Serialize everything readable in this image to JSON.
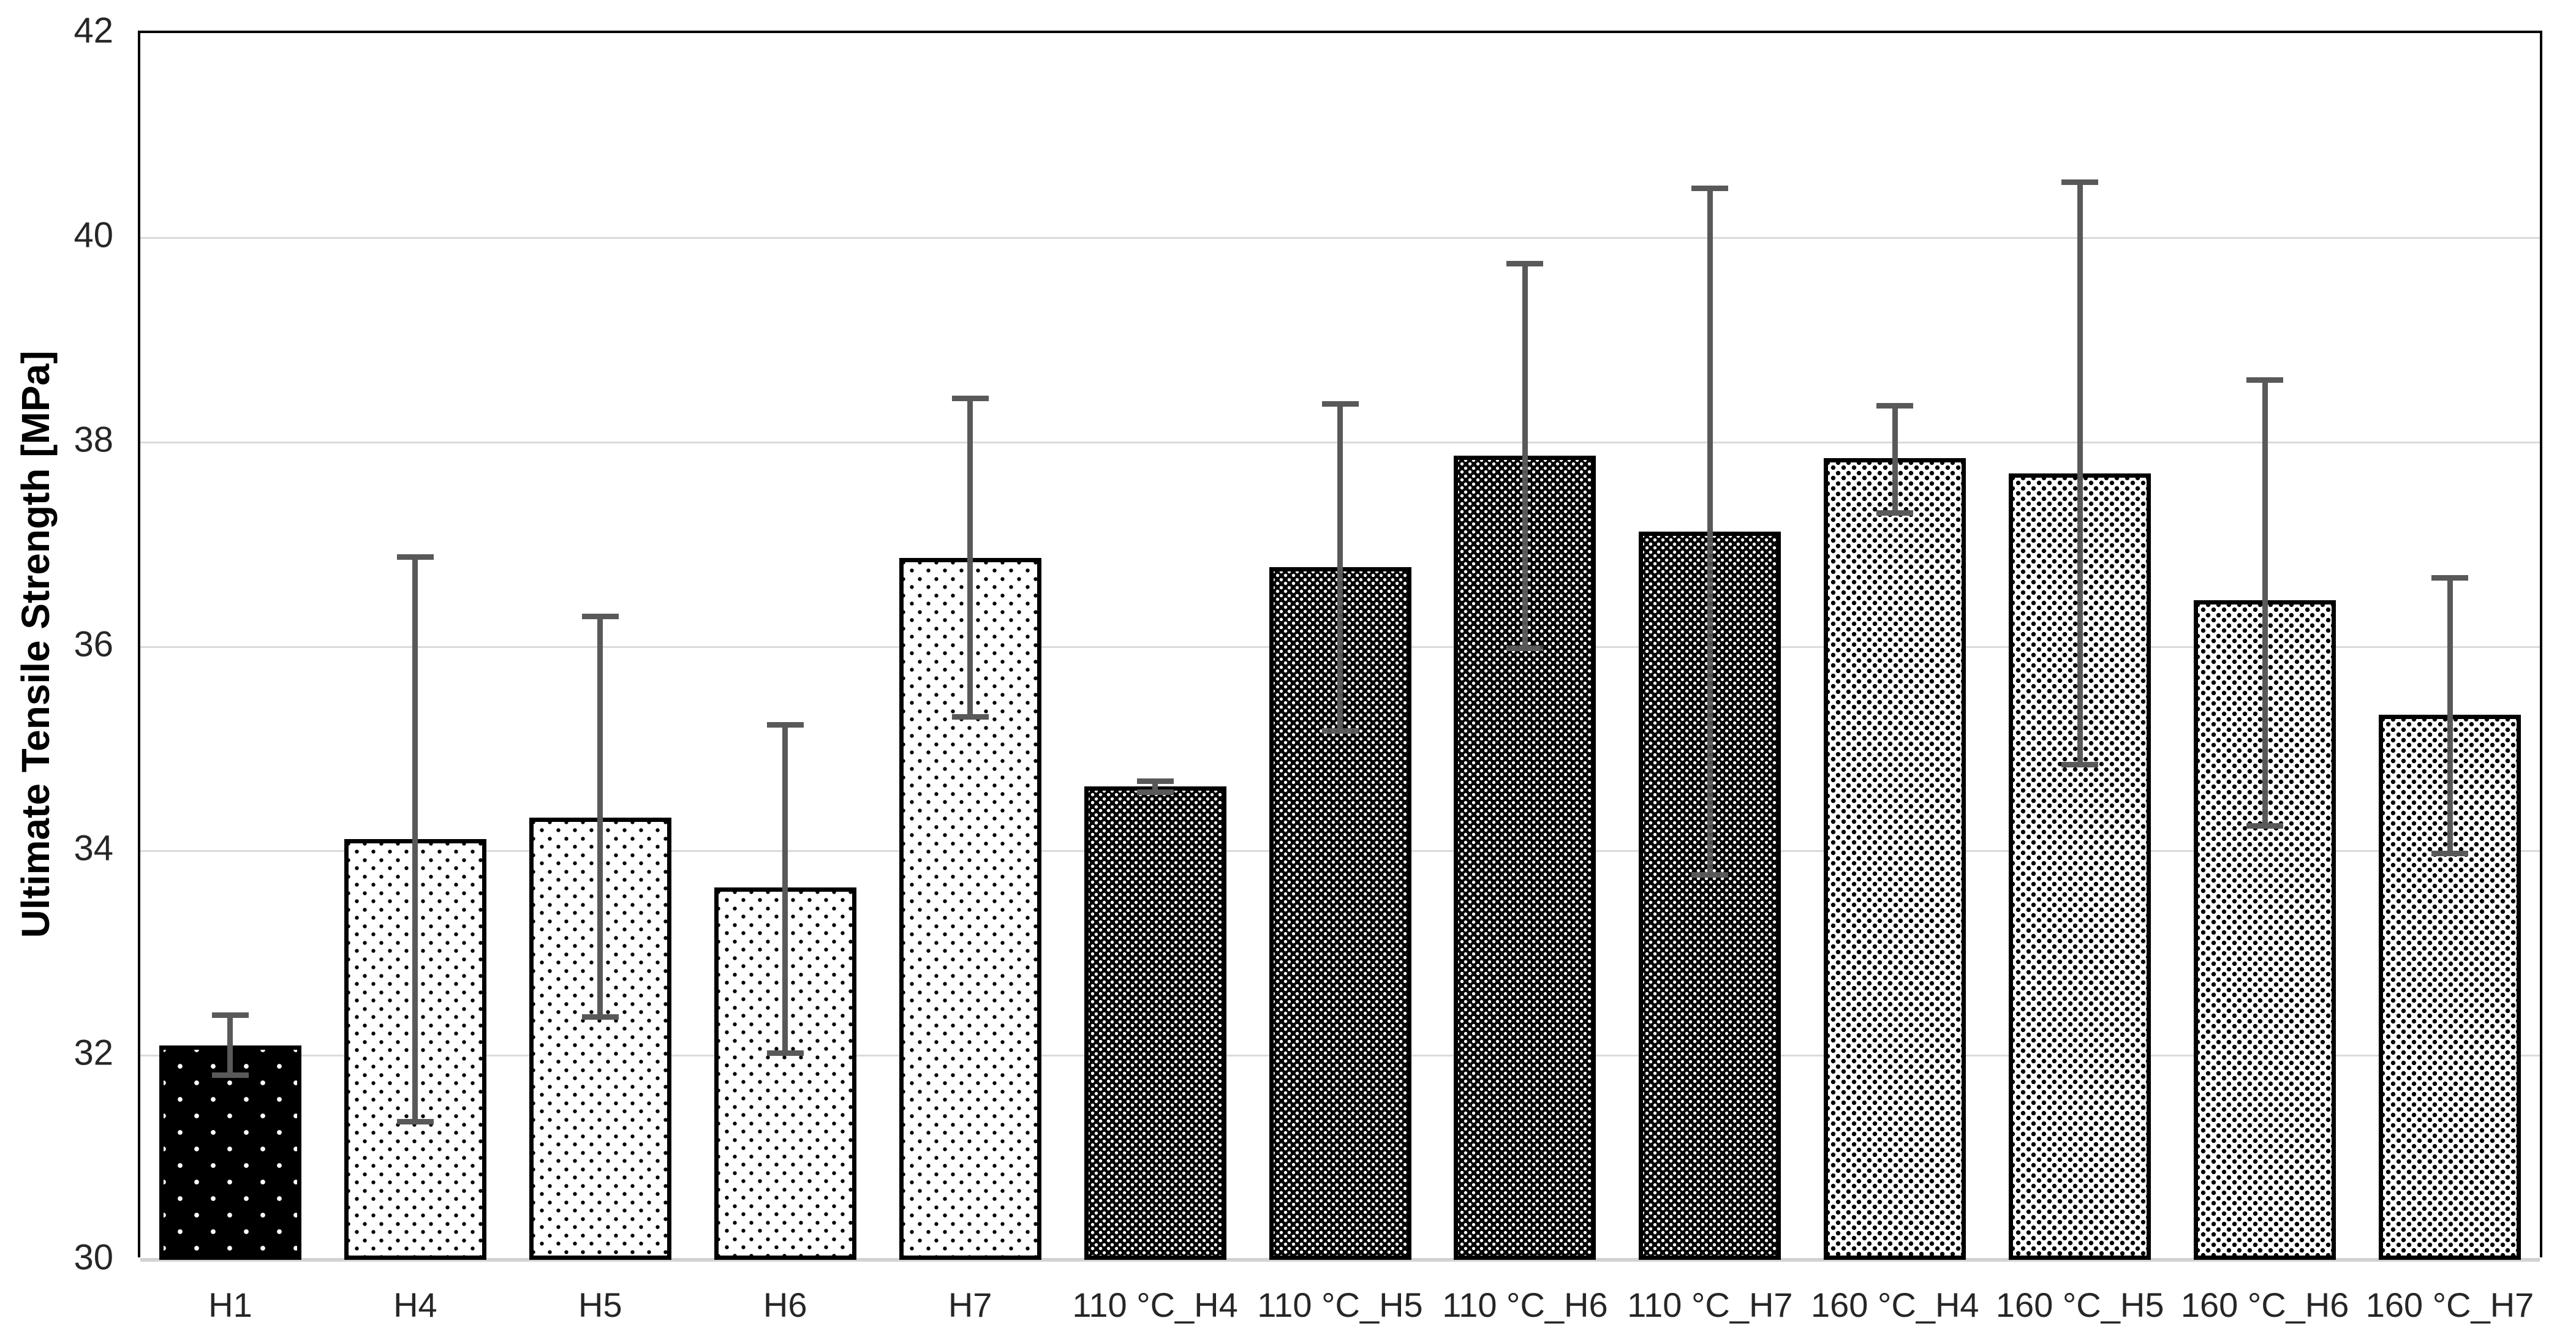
{
  "figure": {
    "background": "#ffffff"
  },
  "y_axis": {
    "title": "Ultimate Tensile Strength [MPa]"
  },
  "chart_data": {
    "type": "bar",
    "title": "",
    "xlabel": "",
    "ylabel": "Ultimate Tensile Strength [MPa]",
    "ylim": [
      30,
      42
    ],
    "yticks": [
      30,
      32,
      34,
      36,
      38,
      40,
      42
    ],
    "grid": "horizontal light-gray lines at each ytick",
    "legend": "none",
    "categories": [
      "H1",
      "H4",
      "H5",
      "H6",
      "H7",
      "110 °C_H4",
      "110 °C_H5",
      "110 °C_H6",
      "110 °C_H7",
      "160 °C_H4",
      "160 °C_H5",
      "160 °C_H6",
      "160 °C_H7"
    ],
    "values": [
      32.07,
      34.09,
      34.3,
      33.62,
      36.84,
      34.61,
      36.75,
      37.84,
      37.1,
      37.82,
      37.67,
      36.43,
      35.31
    ],
    "error_high": [
      32.37,
      36.85,
      36.27,
      35.21,
      38.4,
      34.66,
      38.35,
      39.72,
      40.46,
      38.33,
      40.52,
      38.58,
      36.65
    ],
    "error_low": [
      31.78,
      31.33,
      32.35,
      32.0,
      35.29,
      34.55,
      35.15,
      35.96,
      33.74,
      37.28,
      34.82,
      34.22,
      33.95
    ],
    "patterns": [
      "black-white-dots",
      "white-black-dots",
      "white-black-dots",
      "white-black-dots",
      "white-black-dots",
      "dark-weave",
      "dark-weave",
      "dark-weave",
      "dark-weave",
      "dense-confetti",
      "dense-confetti",
      "dense-confetti",
      "dense-confetti"
    ],
    "colors": {
      "bar_outline": "#000000",
      "error_bar": "#595959",
      "gridline": "#dadada",
      "axis_box": "#000000",
      "baseline": "#d2d2d2",
      "tick_text": "#262626"
    }
  }
}
